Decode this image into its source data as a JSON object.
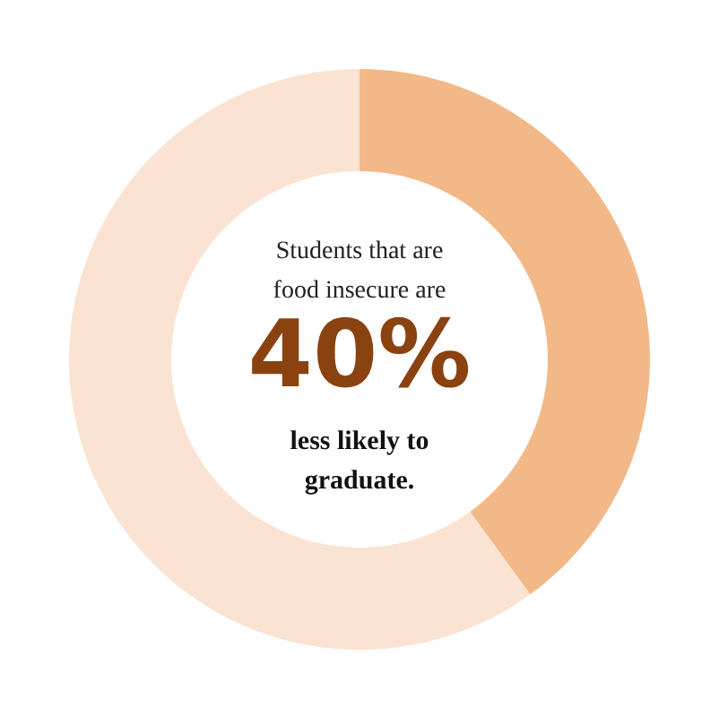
{
  "chart_data": {
    "type": "donut",
    "categories": [
      null,
      null
    ],
    "values": [
      40,
      60
    ],
    "colors": [
      "#f2b887",
      "#fae3d3"
    ],
    "value_labels": [
      "40%",
      null
    ],
    "annotations": [
      "Students that are",
      "food insecure are",
      "less likely to",
      "graduate."
    ]
  }
}
